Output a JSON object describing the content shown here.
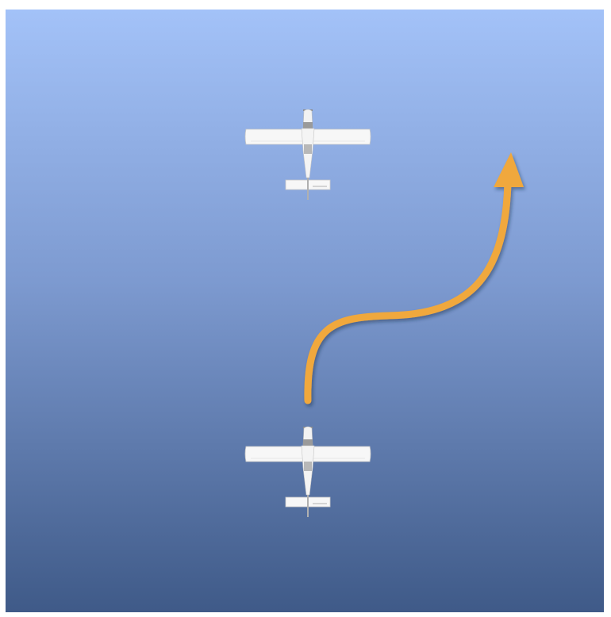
{
  "scene": {
    "sky_top_color": "#a3c2f8",
    "sky_bottom_color": "#3f5a88",
    "arrow_color": "#f0a83c",
    "planes": [
      {
        "name": "lead-aircraft",
        "icon": "airplane-top-view-icon"
      },
      {
        "name": "trailing-aircraft",
        "icon": "airplane-top-view-icon"
      }
    ],
    "maneuver_path": {
      "icon": "curved-arrow-icon"
    }
  }
}
